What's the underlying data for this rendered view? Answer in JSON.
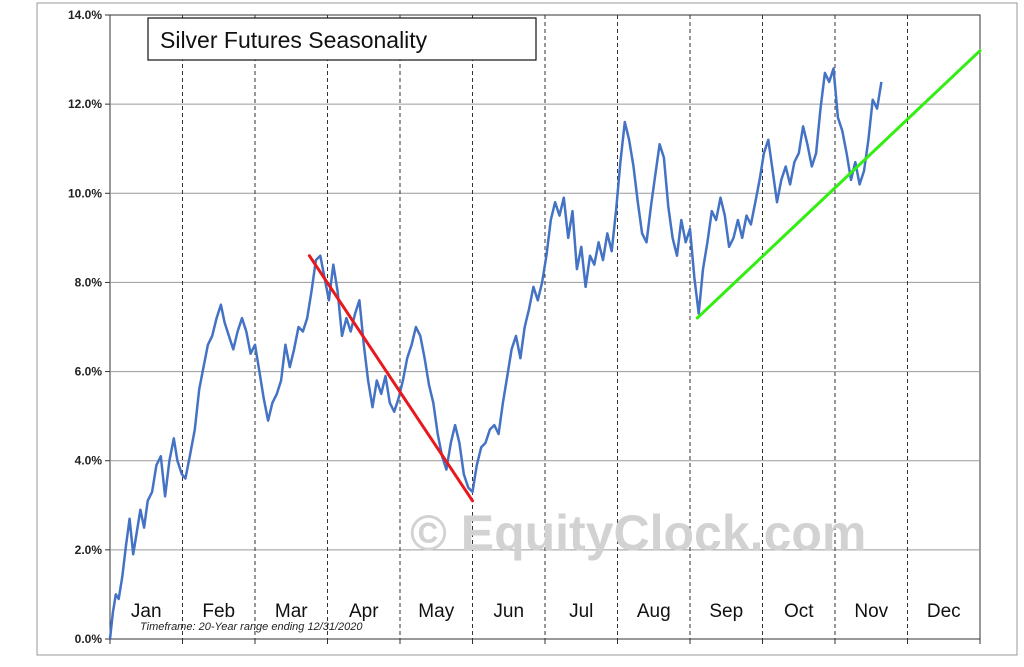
{
  "chart_data": {
    "type": "line",
    "title": "Silver Futures Seasonality",
    "timeframe_note": "Timeframe:  20-Year range ending 12/31/2020",
    "watermark": "© EquityClock.com",
    "y_ticks": [
      "0.0%",
      "2.0%",
      "4.0%",
      "6.0%",
      "8.0%",
      "10.0%",
      "12.0%",
      "14.0%"
    ],
    "ylim": [
      0,
      14
    ],
    "y_unit": "%",
    "months": [
      "Jan",
      "Feb",
      "Mar",
      "Apr",
      "May",
      "Jun",
      "Jul",
      "Aug",
      "Sep",
      "Oct",
      "Nov",
      "Dec"
    ],
    "x_unit": "month (0 = start of Jan, 12 = end of Dec)",
    "grid": {
      "horizontal": "solid",
      "vertical": "dashed at month boundaries"
    },
    "series": [
      {
        "color": "#4472c4",
        "points": [
          [
            0.0,
            0.0
          ],
          [
            0.04,
            0.6
          ],
          [
            0.08,
            1.0
          ],
          [
            0.12,
            0.9
          ],
          [
            0.17,
            1.4
          ],
          [
            0.22,
            2.1
          ],
          [
            0.27,
            2.7
          ],
          [
            0.32,
            1.9
          ],
          [
            0.37,
            2.4
          ],
          [
            0.42,
            2.9
          ],
          [
            0.47,
            2.5
          ],
          [
            0.52,
            3.1
          ],
          [
            0.58,
            3.3
          ],
          [
            0.64,
            3.9
          ],
          [
            0.7,
            4.1
          ],
          [
            0.76,
            3.2
          ],
          [
            0.82,
            4.0
          ],
          [
            0.88,
            4.5
          ],
          [
            0.93,
            4.0
          ],
          [
            0.99,
            3.7
          ],
          [
            1.04,
            3.6
          ],
          [
            1.1,
            4.1
          ],
          [
            1.17,
            4.7
          ],
          [
            1.23,
            5.6
          ],
          [
            1.29,
            6.1
          ],
          [
            1.35,
            6.6
          ],
          [
            1.41,
            6.8
          ],
          [
            1.47,
            7.2
          ],
          [
            1.53,
            7.5
          ],
          [
            1.58,
            7.1
          ],
          [
            1.64,
            6.8
          ],
          [
            1.7,
            6.5
          ],
          [
            1.76,
            6.9
          ],
          [
            1.82,
            7.2
          ],
          [
            1.88,
            6.9
          ],
          [
            1.94,
            6.4
          ],
          [
            2.0,
            6.6
          ],
          [
            2.06,
            6.0
          ],
          [
            2.12,
            5.4
          ],
          [
            2.18,
            4.9
          ],
          [
            2.24,
            5.3
          ],
          [
            2.3,
            5.5
          ],
          [
            2.36,
            5.8
          ],
          [
            2.42,
            6.6
          ],
          [
            2.48,
            6.1
          ],
          [
            2.54,
            6.5
          ],
          [
            2.6,
            7.0
          ],
          [
            2.66,
            6.9
          ],
          [
            2.72,
            7.2
          ],
          [
            2.78,
            7.8
          ],
          [
            2.84,
            8.5
          ],
          [
            2.9,
            8.6
          ],
          [
            2.96,
            8.1
          ],
          [
            3.02,
            7.6
          ],
          [
            3.08,
            8.4
          ],
          [
            3.14,
            7.8
          ],
          [
            3.2,
            6.8
          ],
          [
            3.26,
            7.2
          ],
          [
            3.32,
            6.9
          ],
          [
            3.38,
            7.3
          ],
          [
            3.44,
            7.6
          ],
          [
            3.5,
            6.6
          ],
          [
            3.56,
            5.8
          ],
          [
            3.62,
            5.2
          ],
          [
            3.68,
            5.8
          ],
          [
            3.74,
            5.5
          ],
          [
            3.8,
            5.9
          ],
          [
            3.86,
            5.3
          ],
          [
            3.92,
            5.1
          ],
          [
            3.98,
            5.4
          ],
          [
            4.04,
            5.8
          ],
          [
            4.1,
            6.3
          ],
          [
            4.16,
            6.6
          ],
          [
            4.22,
            7.0
          ],
          [
            4.28,
            6.8
          ],
          [
            4.34,
            6.3
          ],
          [
            4.4,
            5.7
          ],
          [
            4.46,
            5.3
          ],
          [
            4.52,
            4.6
          ],
          [
            4.58,
            4.1
          ],
          [
            4.64,
            3.8
          ],
          [
            4.7,
            4.4
          ],
          [
            4.76,
            4.8
          ],
          [
            4.82,
            4.4
          ],
          [
            4.88,
            3.7
          ],
          [
            4.94,
            3.4
          ],
          [
            5.0,
            3.3
          ],
          [
            5.06,
            3.9
          ],
          [
            5.12,
            4.3
          ],
          [
            5.18,
            4.4
          ],
          [
            5.24,
            4.7
          ],
          [
            5.3,
            4.8
          ],
          [
            5.36,
            4.6
          ],
          [
            5.42,
            5.3
          ],
          [
            5.48,
            5.9
          ],
          [
            5.54,
            6.5
          ],
          [
            5.6,
            6.8
          ],
          [
            5.66,
            6.3
          ],
          [
            5.72,
            7.0
          ],
          [
            5.78,
            7.4
          ],
          [
            5.84,
            7.9
          ],
          [
            5.9,
            7.6
          ],
          [
            5.96,
            8.0
          ],
          [
            6.02,
            8.6
          ],
          [
            6.08,
            9.4
          ],
          [
            6.14,
            9.8
          ],
          [
            6.2,
            9.5
          ],
          [
            6.26,
            9.9
          ],
          [
            6.32,
            9.0
          ],
          [
            6.38,
            9.6
          ],
          [
            6.44,
            8.3
          ],
          [
            6.5,
            8.8
          ],
          [
            6.56,
            7.9
          ],
          [
            6.62,
            8.6
          ],
          [
            6.68,
            8.4
          ],
          [
            6.74,
            8.9
          ],
          [
            6.8,
            8.5
          ],
          [
            6.86,
            9.1
          ],
          [
            6.92,
            8.7
          ],
          [
            6.98,
            9.6
          ],
          [
            7.04,
            10.7
          ],
          [
            7.1,
            11.6
          ],
          [
            7.16,
            11.2
          ],
          [
            7.22,
            10.6
          ],
          [
            7.28,
            9.8
          ],
          [
            7.34,
            9.1
          ],
          [
            7.4,
            8.9
          ],
          [
            7.46,
            9.7
          ],
          [
            7.52,
            10.4
          ],
          [
            7.58,
            11.1
          ],
          [
            7.64,
            10.8
          ],
          [
            7.7,
            9.7
          ],
          [
            7.76,
            9.0
          ],
          [
            7.82,
            8.6
          ],
          [
            7.88,
            9.4
          ],
          [
            7.94,
            8.9
          ],
          [
            8.0,
            9.2
          ],
          [
            8.06,
            8.1
          ],
          [
            8.12,
            7.3
          ],
          [
            8.18,
            8.3
          ],
          [
            8.24,
            8.9
          ],
          [
            8.3,
            9.6
          ],
          [
            8.36,
            9.4
          ],
          [
            8.42,
            9.9
          ],
          [
            8.48,
            9.5
          ],
          [
            8.54,
            8.8
          ],
          [
            8.6,
            9.0
          ],
          [
            8.66,
            9.4
          ],
          [
            8.72,
            9.0
          ],
          [
            8.78,
            9.5
          ],
          [
            8.84,
            9.3
          ],
          [
            8.9,
            9.8
          ],
          [
            8.96,
            10.3
          ],
          [
            9.02,
            10.9
          ],
          [
            9.08,
            11.2
          ],
          [
            9.14,
            10.5
          ],
          [
            9.2,
            9.8
          ],
          [
            9.26,
            10.3
          ],
          [
            9.32,
            10.6
          ],
          [
            9.38,
            10.2
          ],
          [
            9.44,
            10.7
          ],
          [
            9.5,
            10.9
          ],
          [
            9.56,
            11.5
          ],
          [
            9.62,
            11.1
          ],
          [
            9.68,
            10.6
          ],
          [
            9.74,
            10.9
          ],
          [
            9.8,
            11.9
          ],
          [
            9.86,
            12.7
          ],
          [
            9.92,
            12.5
          ],
          [
            9.98,
            12.8
          ],
          [
            10.04,
            11.7
          ],
          [
            10.1,
            11.4
          ],
          [
            10.16,
            10.9
          ],
          [
            10.22,
            10.3
          ],
          [
            10.28,
            10.7
          ],
          [
            10.34,
            10.2
          ],
          [
            10.4,
            10.5
          ],
          [
            10.46,
            11.2
          ],
          [
            10.52,
            12.1
          ],
          [
            10.58,
            11.9
          ],
          [
            10.64,
            12.5
          ]
        ]
      }
    ],
    "trend_lines": [
      {
        "color": "#e8181c",
        "from": [
          2.75,
          8.6
        ],
        "to": [
          5.0,
          3.1
        ]
      },
      {
        "color": "#33ee11",
        "from": [
          8.1,
          7.2
        ],
        "to": [
          12.0,
          13.2
        ]
      }
    ],
    "ticker_box": "Silver Futures Seasonality"
  }
}
